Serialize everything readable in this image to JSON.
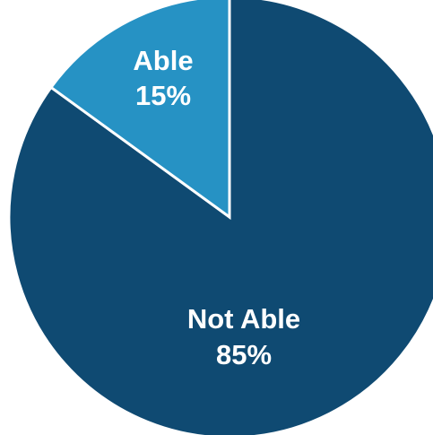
{
  "chart_data": {
    "type": "pie",
    "slices": [
      {
        "label": "Not Able",
        "value": 85,
        "value_text": "85%",
        "color": "#0f4a72"
      },
      {
        "label": "Able",
        "value": 15,
        "value_text": "15%",
        "color": "#2692c4"
      }
    ],
    "start": "12 o'clock",
    "direction": "clockwise",
    "slice_border_color": "#ffffff",
    "legend": "none"
  }
}
